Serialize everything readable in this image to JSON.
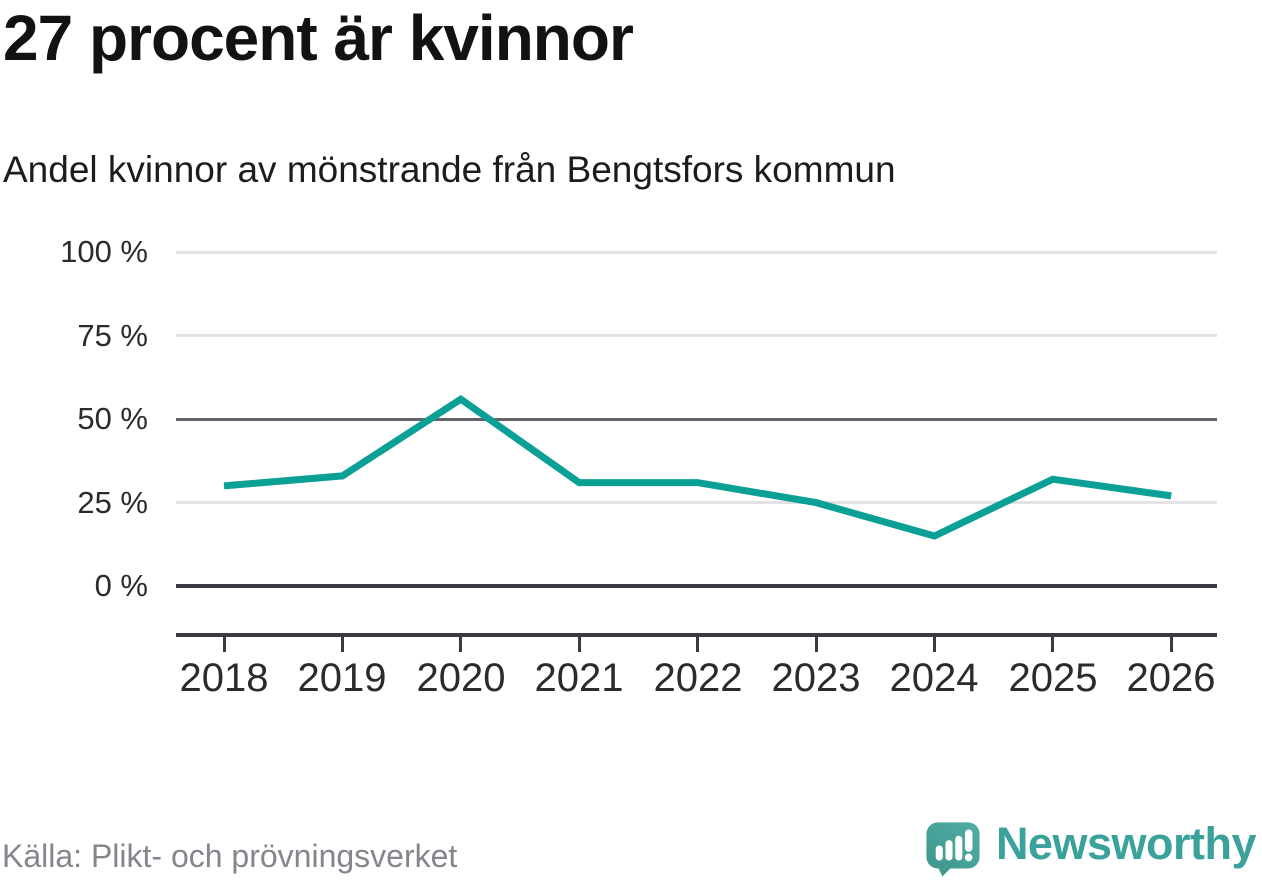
{
  "header": {
    "title": "27 procent är kvinnor",
    "subtitle": "Andel kvinnor av mönstrande från Bengtsfors kommun"
  },
  "chart_data": {
    "type": "line",
    "title": "27 procent är kvinnor",
    "subtitle": "Andel kvinnor av mönstrande från Bengtsfors kommun",
    "x": [
      2018,
      2019,
      2020,
      2021,
      2022,
      2023,
      2024,
      2025,
      2026
    ],
    "series": [
      {
        "name": "Andel kvinnor av mönstrande",
        "values": [
          30,
          33,
          56,
          31,
          31,
          25,
          15,
          32,
          27
        ]
      }
    ],
    "unit": "%",
    "ylim": [
      0,
      100
    ],
    "yticks": [
      0,
      25,
      50,
      75,
      100
    ],
    "ytick_suffix": " %",
    "grid": true,
    "legend": "none",
    "emphasized_gridlines": {
      "zero": 0,
      "mid": 50
    }
  },
  "colors": {
    "line": "#0aa096",
    "title_text": "#121212",
    "axis_text": "#2b2b2b",
    "source_text": "#85858d",
    "brand_teal": "#3aa29a",
    "grid_light": "#e3e3e6",
    "grid_mid": "#63636b",
    "grid_zero": "#3a3a40"
  },
  "footer": {
    "source": "Källa: Plikt- och prövningsverket",
    "brand": "Newsworthy"
  }
}
